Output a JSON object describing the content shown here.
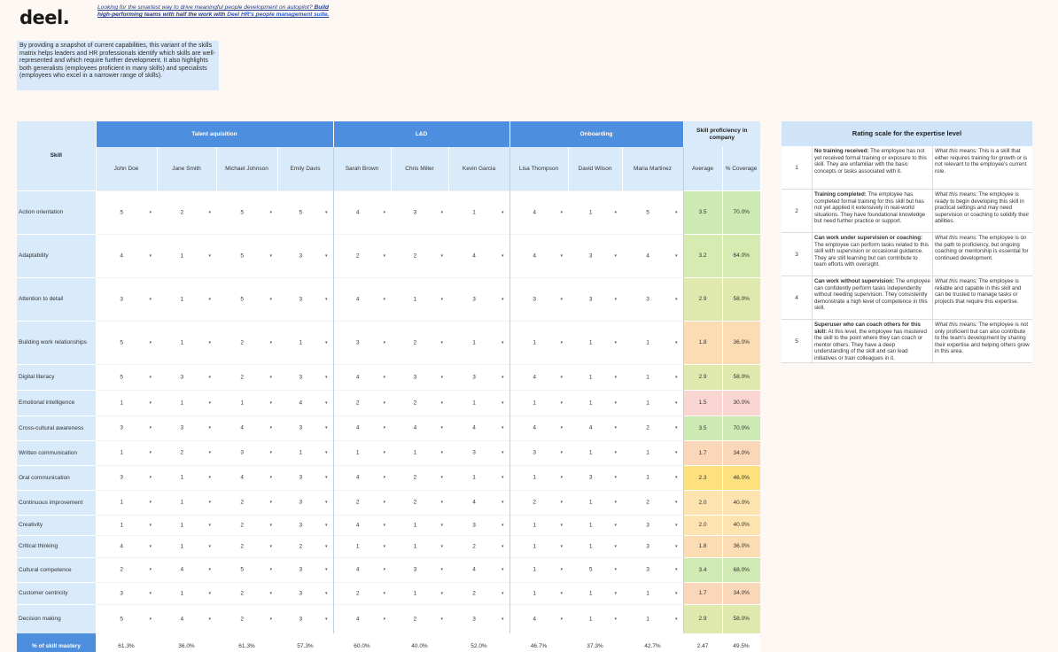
{
  "logo": "deel.",
  "promo": {
    "line1": "Looking for the smartest way to drive meaningful people development on autopilot?",
    "line2": "Build high-performing teams with half the work with",
    "link": "Deel HR's people management suite."
  },
  "intro": "By providing a snapshot of current capabilities, this variant of the skills matrix helps leaders and HR professionals identify which skills are well-represented and which require further development. It also highlights both generalists (employees proficient in many skills) and specialists (employees who excel in a narrower range of skills).",
  "matrix": {
    "skill_header": "Skill",
    "proficiency_header": "Skill proficiency in company",
    "average_header": "Average",
    "coverage_header": "% Coverage",
    "groups": [
      {
        "name": "Talent aquisition",
        "span": 4
      },
      {
        "name": "L&D",
        "span": 3
      },
      {
        "name": "Onboarding",
        "span": 3
      }
    ],
    "employees": [
      "John Doe",
      "Jane Smith",
      "Michael Johnson",
      "Emily Davis",
      "Sarah Brown",
      "Chris Miller",
      "Kevin Garcia",
      "Lisa Thompson",
      "David Wilson",
      "Maria Martinez"
    ],
    "dropdown_glyph": "▾",
    "rows": [
      {
        "skill": "Action orientation",
        "scores": [
          5,
          2,
          5,
          5,
          4,
          3,
          1,
          4,
          1,
          5
        ],
        "average": "3.5",
        "coverage": "70.0%",
        "color": "#cdeab4"
      },
      {
        "skill": "Adaptability",
        "scores": [
          4,
          1,
          5,
          3,
          2,
          2,
          4,
          4,
          3,
          4
        ],
        "average": "3.2",
        "coverage": "64.0%",
        "color": "#d6ebb2"
      },
      {
        "skill": "Attention to detail",
        "scores": [
          3,
          1,
          5,
          3,
          4,
          1,
          3,
          3,
          3,
          3
        ],
        "average": "2.9",
        "coverage": "58.0%",
        "color": "#dfe9ad"
      },
      {
        "skill": "Building work relationships",
        "scores": [
          5,
          1,
          2,
          1,
          3,
          2,
          1,
          1,
          1,
          1
        ],
        "average": "1.8",
        "coverage": "36.0%",
        "color": "#fbdcb3"
      },
      {
        "skill": "Digital literacy",
        "scores": [
          5,
          3,
          2,
          3,
          4,
          3,
          3,
          4,
          1,
          1
        ],
        "average": "2.9",
        "coverage": "58.0%",
        "color": "#dfe9ad"
      },
      {
        "skill": "Emotional intelligence",
        "scores": [
          1,
          1,
          1,
          4,
          2,
          2,
          1,
          1,
          1,
          1
        ],
        "average": "1.5",
        "coverage": "30.0%",
        "color": "#fad6d2"
      },
      {
        "skill": "Cross-cultural awareness",
        "scores": [
          3,
          3,
          4,
          3,
          4,
          4,
          4,
          4,
          4,
          2
        ],
        "average": "3.5",
        "coverage": "70.0%",
        "color": "#cdeab4"
      },
      {
        "skill": "Written communication",
        "scores": [
          1,
          2,
          3,
          1,
          1,
          1,
          3,
          3,
          1,
          1
        ],
        "average": "1.7",
        "coverage": "34.0%",
        "color": "#fbd7b9"
      },
      {
        "skill": "Oral communication",
        "scores": [
          3,
          1,
          4,
          3,
          4,
          2,
          1,
          1,
          3,
          1
        ],
        "average": "2.3",
        "coverage": "46.0%",
        "color": "#fce17e"
      },
      {
        "skill": "Continuous improvement",
        "scores": [
          1,
          1,
          2,
          3,
          2,
          2,
          4,
          2,
          1,
          2
        ],
        "average": "2.0",
        "coverage": "40.0%",
        "color": "#fde3b0"
      },
      {
        "skill": "Creativity",
        "scores": [
          1,
          1,
          2,
          3,
          4,
          1,
          3,
          1,
          1,
          3
        ],
        "average": "2.0",
        "coverage": "40.0%",
        "color": "#fde3b0"
      },
      {
        "skill": "Critical thinking",
        "scores": [
          4,
          1,
          2,
          2,
          1,
          1,
          2,
          1,
          1,
          3
        ],
        "average": "1.8",
        "coverage": "36.0%",
        "color": "#fbdcb3"
      },
      {
        "skill": "Cultural competence",
        "scores": [
          2,
          4,
          5,
          3,
          4,
          3,
          4,
          1,
          5,
          3
        ],
        "average": "3.4",
        "coverage": "68.0%",
        "color": "#cfeab3"
      },
      {
        "skill": "Customer centricity",
        "scores": [
          3,
          1,
          2,
          3,
          2,
          1,
          2,
          1,
          1,
          1
        ],
        "average": "1.7",
        "coverage": "34.0%",
        "color": "#fbd7b9"
      },
      {
        "skill": "Decision making",
        "scores": [
          5,
          4,
          2,
          3,
          4,
          2,
          3,
          4,
          1,
          1
        ],
        "average": "2.9",
        "coverage": "58.0%",
        "color": "#dfe9ad"
      }
    ],
    "footer": {
      "label": "% of skill mastery",
      "values": [
        "61.3%",
        "36.0%",
        "61.3%",
        "57.3%",
        "60.0%",
        "40.0%",
        "52.0%",
        "46.7%",
        "37.3%",
        "42.7%"
      ],
      "average": "2.47",
      "coverage": "49.5%"
    }
  },
  "rating": {
    "title": "Rating scale for the expertise level",
    "means_label": "What this means:",
    "levels": [
      {
        "num": "1",
        "name": "No training received:",
        "desc": "The employee has not yet received formal training or exposure to this skill. They are unfamiliar with the basic concepts or tasks associated with it.",
        "means": "This is a skill that either requires training for growth or is not relevant to the employee's current role."
      },
      {
        "num": "2",
        "name": "Training completed:",
        "desc": "The employee has completed formal training for this skill but has not yet applied it extensively in real-world situations. They have foundational knowledge but need further practice or support.",
        "means": "The employee is ready to begin developing this skill in practical settings and may need supervision or coaching to solidify their abilities."
      },
      {
        "num": "3",
        "name": "Can work under supervision or coaching:",
        "desc": "The employee can perform tasks related to this skill with supervision or occasional guidance. They are still learning but can contribute to team efforts with oversight.",
        "means": "The employee is on the path to proficiency, but ongoing coaching or mentorship is essential for continued development."
      },
      {
        "num": "4",
        "name": "Can work without supervision:",
        "desc": "The employee can confidently perform tasks independently without needing supervision. They consistently demonstrate a high level of competence in this skill.",
        "means": "The employee is reliable and capable in this skill and can be trusted to manage tasks or projects that require this expertise."
      },
      {
        "num": "5",
        "name": "Superuser who can coach others for this skill:",
        "desc": "At this level, the employee has mastered the skill to the point where they can coach or mentor others. They have a deep understanding of the skill and can lead initiatives or train colleagues in it.",
        "means": "The employee is not only proficient but can also contribute to the team's development by sharing their expertise and helping others grow in this area."
      }
    ]
  }
}
